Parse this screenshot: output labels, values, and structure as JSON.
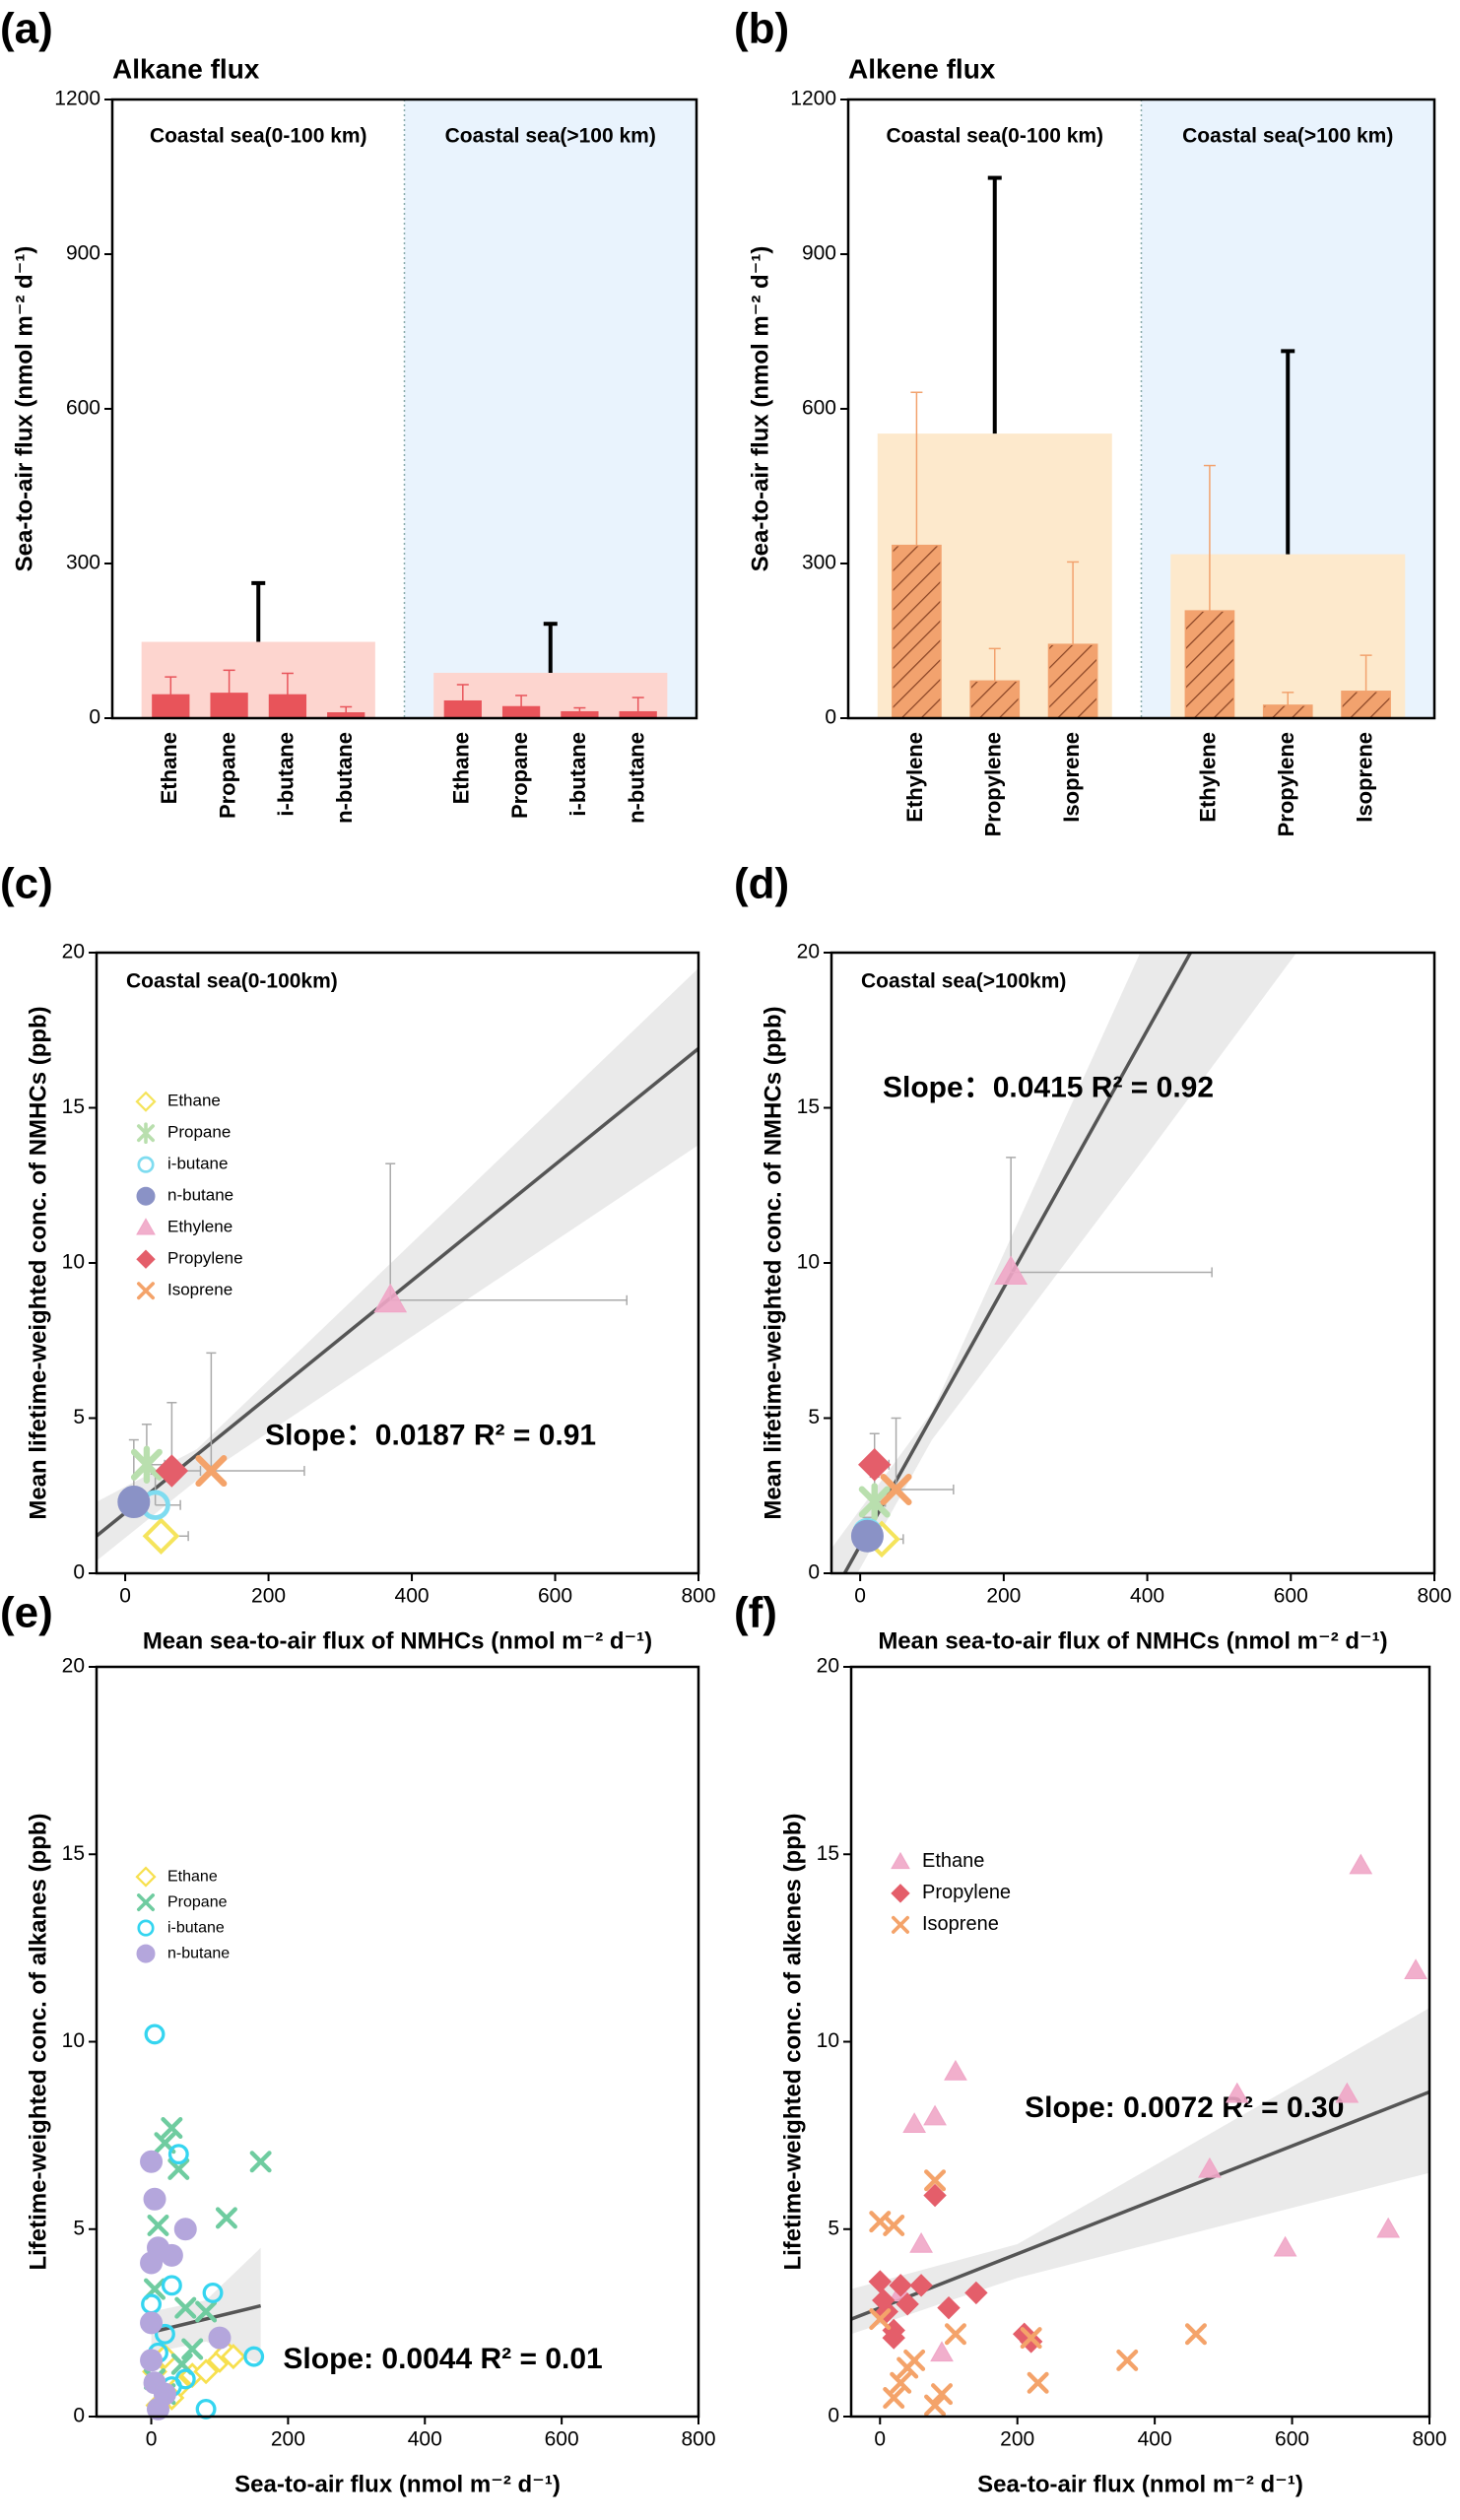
{
  "chart_data": [
    {
      "type": "bar",
      "panel_label": "(a)",
      "title": "Alkane flux",
      "ylabel": "Sea-to-air flux (nmol m⁻² d⁻¹)",
      "ylim": [
        0,
        1200
      ],
      "yticks": [
        0,
        300,
        600,
        900,
        1200
      ],
      "color": "#e8545a",
      "total_color": "#fdd5cf",
      "hatch": false,
      "group_backgrounds": [
        "#ffffff",
        "#e9f3fd"
      ],
      "groups": [
        {
          "name": "Coastal sea(0-100 km)",
          "categories": [
            "Ethane",
            "Propane",
            "i-butane",
            "n-butane"
          ],
          "values": [
            45,
            48,
            45,
            10
          ],
          "errors": [
            35,
            45,
            42,
            12
          ],
          "total": 148,
          "total_error": 114
        },
        {
          "name": "Coastal sea(>100 km)",
          "categories": [
            "Ethane",
            "Propane",
            "i-butane",
            "n-butane"
          ],
          "values": [
            33,
            22,
            12,
            12
          ],
          "errors": [
            32,
            22,
            8,
            28
          ],
          "total": 88,
          "total_error": 95
        }
      ]
    },
    {
      "type": "bar",
      "panel_label": "(b)",
      "title": "Alkene flux",
      "ylabel": "Sea-to-air flux (nmol m⁻² d⁻¹)",
      "ylim": [
        0,
        1200
      ],
      "yticks": [
        0,
        300,
        600,
        900,
        1200
      ],
      "color": "#f2a26e",
      "total_color": "#fde9cc",
      "hatch": true,
      "group_backgrounds": [
        "#ffffff",
        "#e9f3fd"
      ],
      "groups": [
        {
          "name": "Coastal sea(0-100 km)",
          "categories": [
            "Ethylene",
            "Propylene",
            "Isoprene"
          ],
          "values": [
            335,
            72,
            143
          ],
          "errors": [
            297,
            63,
            160
          ],
          "total": 552,
          "total_error": 496
        },
        {
          "name": "Coastal sea(>100 km)",
          "categories": [
            "Ethylene",
            "Propylene",
            "Isoprene"
          ],
          "values": [
            208,
            25,
            52
          ],
          "errors": [
            282,
            25,
            70
          ],
          "total": 318,
          "total_error": 394
        }
      ]
    },
    {
      "type": "scatter",
      "panel_label": "(c)",
      "region_label": "Coastal sea(0-100km)",
      "xlabel": "Mean sea-to-air flux of NMHCs (nmol m⁻² d⁻¹)",
      "ylabel": "Mean lifetime-weighted conc. of NMHCs (ppb)",
      "xlim": [
        -40,
        800
      ],
      "xticks": [
        0,
        200,
        400,
        600,
        800
      ],
      "ylim": [
        0,
        20
      ],
      "yticks": [
        0,
        5,
        10,
        15,
        20
      ],
      "legend": "upper left",
      "fit": {
        "slope": 0.0187,
        "intercept": 1.95,
        "x_range": [
          -40,
          800
        ],
        "label": "Slope：0.0187 R² = 0.91"
      },
      "ci": {
        "x": [
          -40,
          100,
          800
        ],
        "lower": [
          0.4,
          3.0,
          13.8
        ],
        "upper": [
          2.3,
          4.0,
          19.5
        ]
      },
      "series": [
        {
          "name": "Ethane",
          "color": "#f5e45c",
          "marker": "diamond-open",
          "x": [
            50
          ],
          "y": [
            1.2
          ],
          "xerr": [
            38
          ],
          "yerr": [
            0.2
          ]
        },
        {
          "name": "Propane",
          "color": "#b9dfae",
          "marker": "asterisk",
          "x": [
            30
          ],
          "y": [
            3.5
          ],
          "xerr": [
            25
          ],
          "yerr": [
            1.3
          ]
        },
        {
          "name": "i-butane",
          "color": "#7fdcf0",
          "marker": "circle-open",
          "x": [
            42
          ],
          "y": [
            2.2
          ],
          "xerr": [
            35
          ],
          "yerr": [
            1.0
          ]
        },
        {
          "name": "n-butane",
          "color": "#8a92c6",
          "marker": "circle",
          "x": [
            12
          ],
          "y": [
            2.3
          ],
          "xerr": [
            8
          ],
          "yerr": [
            2.0
          ]
        },
        {
          "name": "Ethylene",
          "color": "#f0a6c7",
          "marker": "triangle",
          "x": [
            370
          ],
          "y": [
            8.8
          ],
          "xerr": [
            330
          ],
          "yerr": [
            4.4
          ]
        },
        {
          "name": "Propylene",
          "color": "#e45e6a",
          "marker": "diamond",
          "x": [
            65
          ],
          "y": [
            3.3
          ],
          "xerr": [
            40
          ],
          "yerr": [
            2.2
          ]
        },
        {
          "name": "Isoprene",
          "color": "#f4a36a",
          "marker": "x",
          "x": [
            120
          ],
          "y": [
            3.3
          ],
          "xerr": [
            130
          ],
          "yerr": [
            3.8
          ]
        }
      ]
    },
    {
      "type": "scatter",
      "panel_label": "(d)",
      "region_label": "Coastal sea(>100km)",
      "xlabel": "Mean sea-to-air flux of NMHCs (nmol m⁻² d⁻¹)",
      "ylabel": "Mean lifetime-weighted conc. of  NMHCs (ppb)",
      "xlim": [
        -40,
        800
      ],
      "xticks": [
        0,
        200,
        400,
        600,
        800
      ],
      "ylim": [
        0,
        20
      ],
      "yticks": [
        0,
        5,
        10,
        15,
        20
      ],
      "fit": {
        "slope": 0.0415,
        "intercept": 0.9,
        "x_range": [
          -40,
          800
        ],
        "label": "Slope：0.0415 R² = 0.92"
      },
      "ci": {
        "x": [
          -40,
          100,
          400,
          800
        ],
        "lower": [
          -1.5,
          4.3,
          13.5,
          26
        ],
        "upper": [
          0.8,
          5.2,
          20.5,
          40
        ]
      },
      "series": [
        {
          "name": "Ethane",
          "color": "#f5e45c",
          "marker": "diamond-open",
          "x": [
            30
          ],
          "y": [
            1.1
          ],
          "xerr": [
            30
          ],
          "yerr": [
            0.2
          ]
        },
        {
          "name": "Propane",
          "color": "#b9dfae",
          "marker": "asterisk",
          "x": [
            20
          ],
          "y": [
            2.3
          ],
          "xerr": [
            15
          ],
          "yerr": [
            0.8
          ]
        },
        {
          "name": "i-butane",
          "color": "#7fdcf0",
          "marker": "circle-open",
          "x": [
            10
          ],
          "y": [
            1.3
          ],
          "xerr": [
            8
          ],
          "yerr": [
            0.5
          ]
        },
        {
          "name": "n-butane",
          "color": "#8a92c6",
          "marker": "circle",
          "x": [
            10
          ],
          "y": [
            1.2
          ],
          "xerr": [
            5
          ],
          "yerr": [
            0.3
          ]
        },
        {
          "name": "Ethylene",
          "color": "#f0a6c7",
          "marker": "triangle",
          "x": [
            210
          ],
          "y": [
            9.7
          ],
          "xerr": [
            280
          ],
          "yerr": [
            3.7
          ]
        },
        {
          "name": "Propylene",
          "color": "#e45e6a",
          "marker": "diamond",
          "x": [
            20
          ],
          "y": [
            3.5
          ],
          "xerr": [
            20
          ],
          "yerr": [
            1.0
          ]
        },
        {
          "name": "Isoprene",
          "color": "#f4a36a",
          "marker": "x",
          "x": [
            50
          ],
          "y": [
            2.7
          ],
          "xerr": [
            80
          ],
          "yerr": [
            2.3
          ]
        }
      ]
    },
    {
      "type": "scatter",
      "panel_label": "(e)",
      "xlabel": "Sea-to-air flux (nmol m⁻² d⁻¹)",
      "ylabel": "Lifetime-weighted conc. of alkanes (ppb)",
      "xlim": [
        -80,
        800
      ],
      "xticks": [
        0,
        200,
        400,
        600,
        800
      ],
      "ylim": [
        0,
        20
      ],
      "yticks": [
        0,
        5,
        10,
        15,
        20
      ],
      "legend": "upper left",
      "fit": {
        "slope": 0.0044,
        "intercept": 2.25,
        "x_range": [
          0,
          160
        ],
        "label": "Slope: 0.0044 R² = 0.01"
      },
      "ci": {
        "x": [
          0,
          80,
          160
        ],
        "lower": [
          1.7,
          2.0,
          1.4
        ],
        "upper": [
          2.8,
          3.1,
          4.5
        ]
      },
      "series": [
        {
          "name": "Ethane",
          "color": "#f7e04e",
          "marker": "diamond-open",
          "x": [
            5,
            20,
            40,
            60,
            80,
            100,
            110,
            120,
            30,
            10
          ],
          "y": [
            1.2,
            1.6,
            0.8,
            1.1,
            1.2,
            1.5,
            1.7,
            1.6,
            0.5,
            0.3
          ]
        },
        {
          "name": "Propane",
          "color": "#6fcca0",
          "marker": "x",
          "x": [
            5,
            10,
            20,
            30,
            40,
            50,
            60,
            80,
            110,
            160,
            5,
            45,
            20
          ],
          "y": [
            3.4,
            5.1,
            7.3,
            7.7,
            6.6,
            2.9,
            1.8,
            2.8,
            5.3,
            6.8,
            1.0,
            1.4,
            0.6
          ]
        },
        {
          "name": "i-butane",
          "color": "#35d5f0",
          "marker": "circle-open",
          "x": [
            5,
            0,
            30,
            40,
            20,
            90,
            100,
            150,
            10,
            80,
            50,
            30
          ],
          "y": [
            10.2,
            3.0,
            3.5,
            7.0,
            2.2,
            3.3,
            2.1,
            1.6,
            1.7,
            0.2,
            1.0,
            0.8
          ]
        },
        {
          "name": "n-butane",
          "color": "#b4a6dc",
          "marker": "circle",
          "x": [
            0,
            5,
            10,
            30,
            50,
            0,
            0,
            0,
            5,
            100,
            20,
            10
          ],
          "y": [
            6.8,
            5.8,
            4.5,
            4.3,
            5.0,
            4.1,
            2.5,
            1.5,
            0.9,
            2.1,
            0.6,
            0.2
          ]
        }
      ]
    },
    {
      "type": "scatter",
      "panel_label": "(f)",
      "xlabel": "Sea-to-air flux (nmol m⁻² d⁻¹)",
      "ylabel": "Lifetime-weighted conc. of alkenes (ppb)",
      "xlim": [
        -42,
        800
      ],
      "xticks": [
        0,
        200,
        400,
        600,
        800
      ],
      "ylim": [
        0,
        20
      ],
      "yticks": [
        0,
        5,
        10,
        15,
        20
      ],
      "legend": "upper left",
      "fit": {
        "slope": 0.0072,
        "intercept": 2.9,
        "x_range": [
          -42,
          800
        ],
        "label": "Slope: 0.0072 R² = 0.30"
      },
      "ci": {
        "x": [
          -42,
          200,
          800
        ],
        "lower": [
          2.2,
          3.7,
          6.5
        ],
        "upper": [
          3.4,
          4.6,
          10.9
        ]
      },
      "series": [
        {
          "name": "Ethane",
          "color": "#f0a6c7",
          "marker": "triangle",
          "x": [
            30,
            50,
            80,
            110,
            60,
            700,
            780,
            680,
            520,
            480,
            590,
            740,
            90
          ],
          "y": [
            3.3,
            7.8,
            8.0,
            9.2,
            4.6,
            14.7,
            11.9,
            8.6,
            8.6,
            6.6,
            4.5,
            5.0,
            1.7
          ]
        },
        {
          "name": "Propylene",
          "color": "#e45e6a",
          "marker": "diamond",
          "x": [
            0,
            10,
            20,
            30,
            40,
            60,
            80,
            100,
            140,
            210,
            220,
            20,
            5
          ],
          "y": [
            3.6,
            2.8,
            2.3,
            3.5,
            3.0,
            3.5,
            5.9,
            2.9,
            3.3,
            2.2,
            2.0,
            2.1,
            3.1
          ]
        },
        {
          "name": "Isoprene",
          "color": "#f4a36a",
          "marker": "x",
          "x": [
            0,
            20,
            30,
            40,
            80,
            90,
            110,
            220,
            230,
            360,
            460,
            20,
            50,
            80,
            0
          ],
          "y": [
            5.2,
            5.1,
            0.9,
            1.3,
            6.3,
            0.6,
            2.2,
            2.1,
            0.9,
            1.5,
            2.2,
            0.5,
            1.5,
            0.3,
            2.6
          ]
        }
      ]
    }
  ]
}
